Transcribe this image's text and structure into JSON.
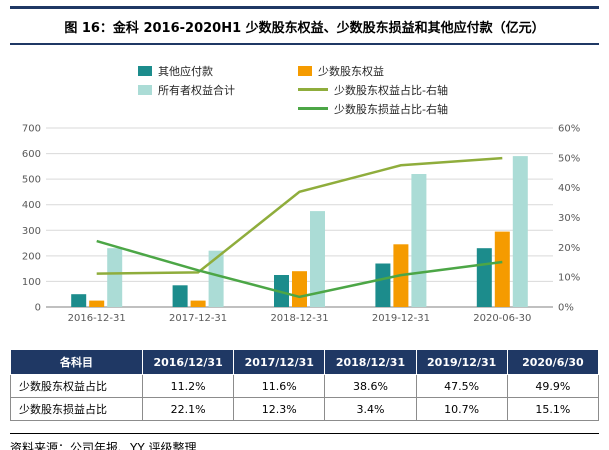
{
  "title": "图 16：金科 2016-2020H1 少数股东权益、少数股东损益和其他应付款（亿元）",
  "footer": "资料来源：公司年报、YY 评级整理",
  "colors": {
    "navy": "#1F3864",
    "teal": "#1C8C8C",
    "orange": "#F59B00",
    "pale_teal": "#ABDCD6",
    "olive": "#8FAD3C",
    "green": "#4CA646",
    "grid": "#D9D9D9",
    "axis_line": "#808080",
    "axis_text": "#595959"
  },
  "legend": {
    "rows": [
      [
        {
          "type": "bar",
          "color_key": "teal",
          "label": "其他应付款"
        },
        {
          "type": "bar",
          "color_key": "orange",
          "label": "少数股东权益"
        }
      ],
      [
        {
          "type": "bar",
          "color_key": "pale_teal",
          "label": "所有者权益合计"
        },
        {
          "type": "line",
          "color_key": "olive",
          "label": "少数股东权益占比-右轴"
        }
      ],
      [
        null,
        {
          "type": "line",
          "color_key": "green",
          "label": "少数股东损益占比-右轴"
        }
      ]
    ]
  },
  "chart_data": {
    "type": "bar",
    "subtype": "grouped-bars-with-lines-combo",
    "categories": [
      "2016-12-31",
      "2017-12-31",
      "2018-12-31",
      "2019-12-31",
      "2020-06-30"
    ],
    "bar_series": [
      {
        "name": "其他应付款",
        "color_key": "teal",
        "axis": "left",
        "values": [
          50,
          85,
          125,
          170,
          230
        ]
      },
      {
        "name": "少数股东权益",
        "color_key": "orange",
        "axis": "left",
        "values": [
          25,
          25,
          140,
          245,
          295
        ]
      },
      {
        "name": "所有者权益合计",
        "color_key": "pale_teal",
        "axis": "left",
        "values": [
          230,
          220,
          375,
          520,
          590
        ]
      }
    ],
    "line_series": [
      {
        "name": "少数股东权益占比-右轴",
        "color_key": "olive",
        "axis": "right",
        "values": [
          11.2,
          11.6,
          38.6,
          47.5,
          49.9
        ]
      },
      {
        "name": "少数股东损益占比-右轴",
        "color_key": "green",
        "axis": "right",
        "values": [
          22.1,
          12.3,
          3.4,
          10.7,
          15.1
        ]
      }
    ],
    "left_axis": {
      "min": 0,
      "max": 700,
      "step": 100
    },
    "right_axis": {
      "min": 0,
      "max": 60,
      "step": 10,
      "suffix": "%"
    },
    "grid": true,
    "legend_position": "top"
  },
  "table": {
    "headers": [
      "各科目",
      "2016/12/31",
      "2017/12/31",
      "2018/12/31",
      "2019/12/31",
      "2020/6/30"
    ],
    "rows": [
      [
        "少数股东权益占比",
        "11.2%",
        "11.6%",
        "38.6%",
        "47.5%",
        "49.9%"
      ],
      [
        "少数股东损益占比",
        "22.1%",
        "12.3%",
        "3.4%",
        "10.7%",
        "15.1%"
      ]
    ]
  }
}
